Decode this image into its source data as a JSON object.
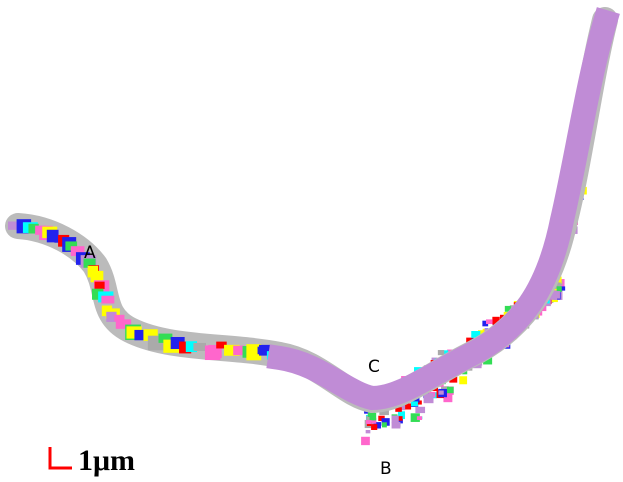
{
  "labels": {
    "a": "A",
    "b": "B",
    "c": "C"
  },
  "scale_bar": {
    "label": "1μm"
  }
}
